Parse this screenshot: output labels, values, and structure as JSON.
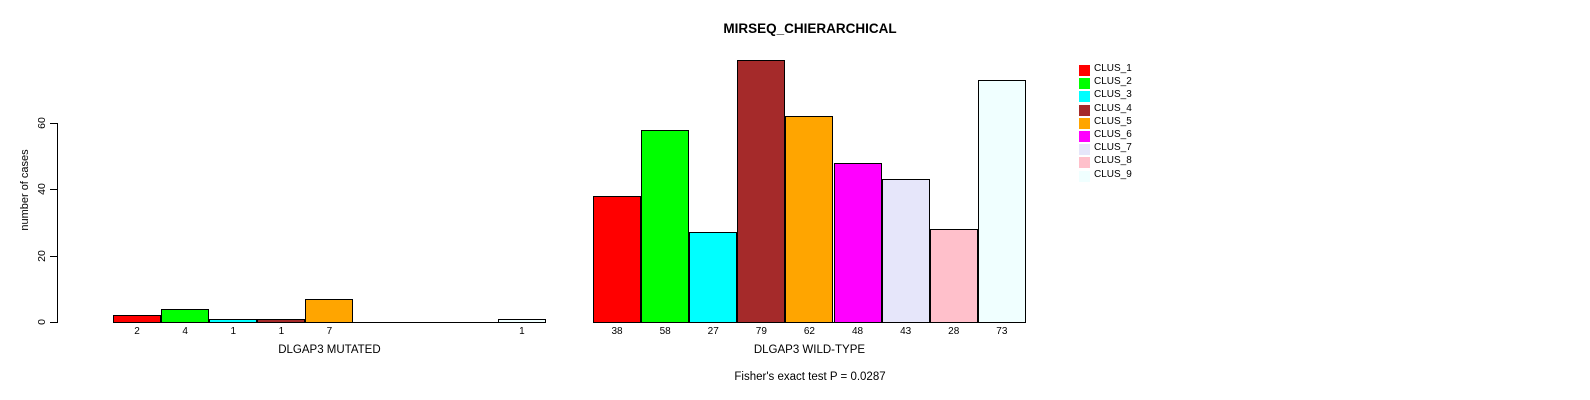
{
  "chart_data": {
    "type": "bar",
    "title": "MIRSEQ_CHIERARCHICAL",
    "ylabel": "number of cases",
    "annotation": "Fisher's exact test P = 0.0287",
    "yticks": [
      0,
      20,
      40,
      60
    ],
    "ylim": [
      0,
      79
    ],
    "grid": false,
    "bar_value_labels": true,
    "categories": [
      "CLUS_1",
      "CLUS_2",
      "CLUS_3",
      "CLUS_4",
      "CLUS_5",
      "CLUS_6",
      "CLUS_7",
      "CLUS_8",
      "CLUS_9"
    ],
    "series_colors": [
      "#FF0000",
      "#00FF00",
      "#00FFFF",
      "#A52A2A",
      "#FFA500",
      "#FF00FF",
      "#E6E6FA",
      "#FFC0CB",
      "#F0FFFF"
    ],
    "groups": [
      {
        "label": "DLGAP3 MUTATED",
        "values": [
          2,
          4,
          1,
          1,
          7,
          0,
          0,
          0,
          1
        ]
      },
      {
        "label": "DLGAP3 WILD-TYPE",
        "values": [
          38,
          58,
          27,
          79,
          62,
          48,
          43,
          28,
          73
        ]
      }
    ],
    "legend": {
      "position": "right",
      "entries": [
        {
          "label": "CLUS_1",
          "color": "#FF0000"
        },
        {
          "label": "CLUS_2",
          "color": "#00FF00"
        },
        {
          "label": "CLUS_3",
          "color": "#00FFFF"
        },
        {
          "label": "CLUS_4",
          "color": "#A52A2A"
        },
        {
          "label": "CLUS_5",
          "color": "#FFA500"
        },
        {
          "label": "CLUS_6",
          "color": "#FF00FF"
        },
        {
          "label": "CLUS_7",
          "color": "#E6E6FA"
        },
        {
          "label": "CLUS_8",
          "color": "#FFC0CB"
        },
        {
          "label": "CLUS_9",
          "color": "#F0FFFF"
        }
      ]
    }
  }
}
